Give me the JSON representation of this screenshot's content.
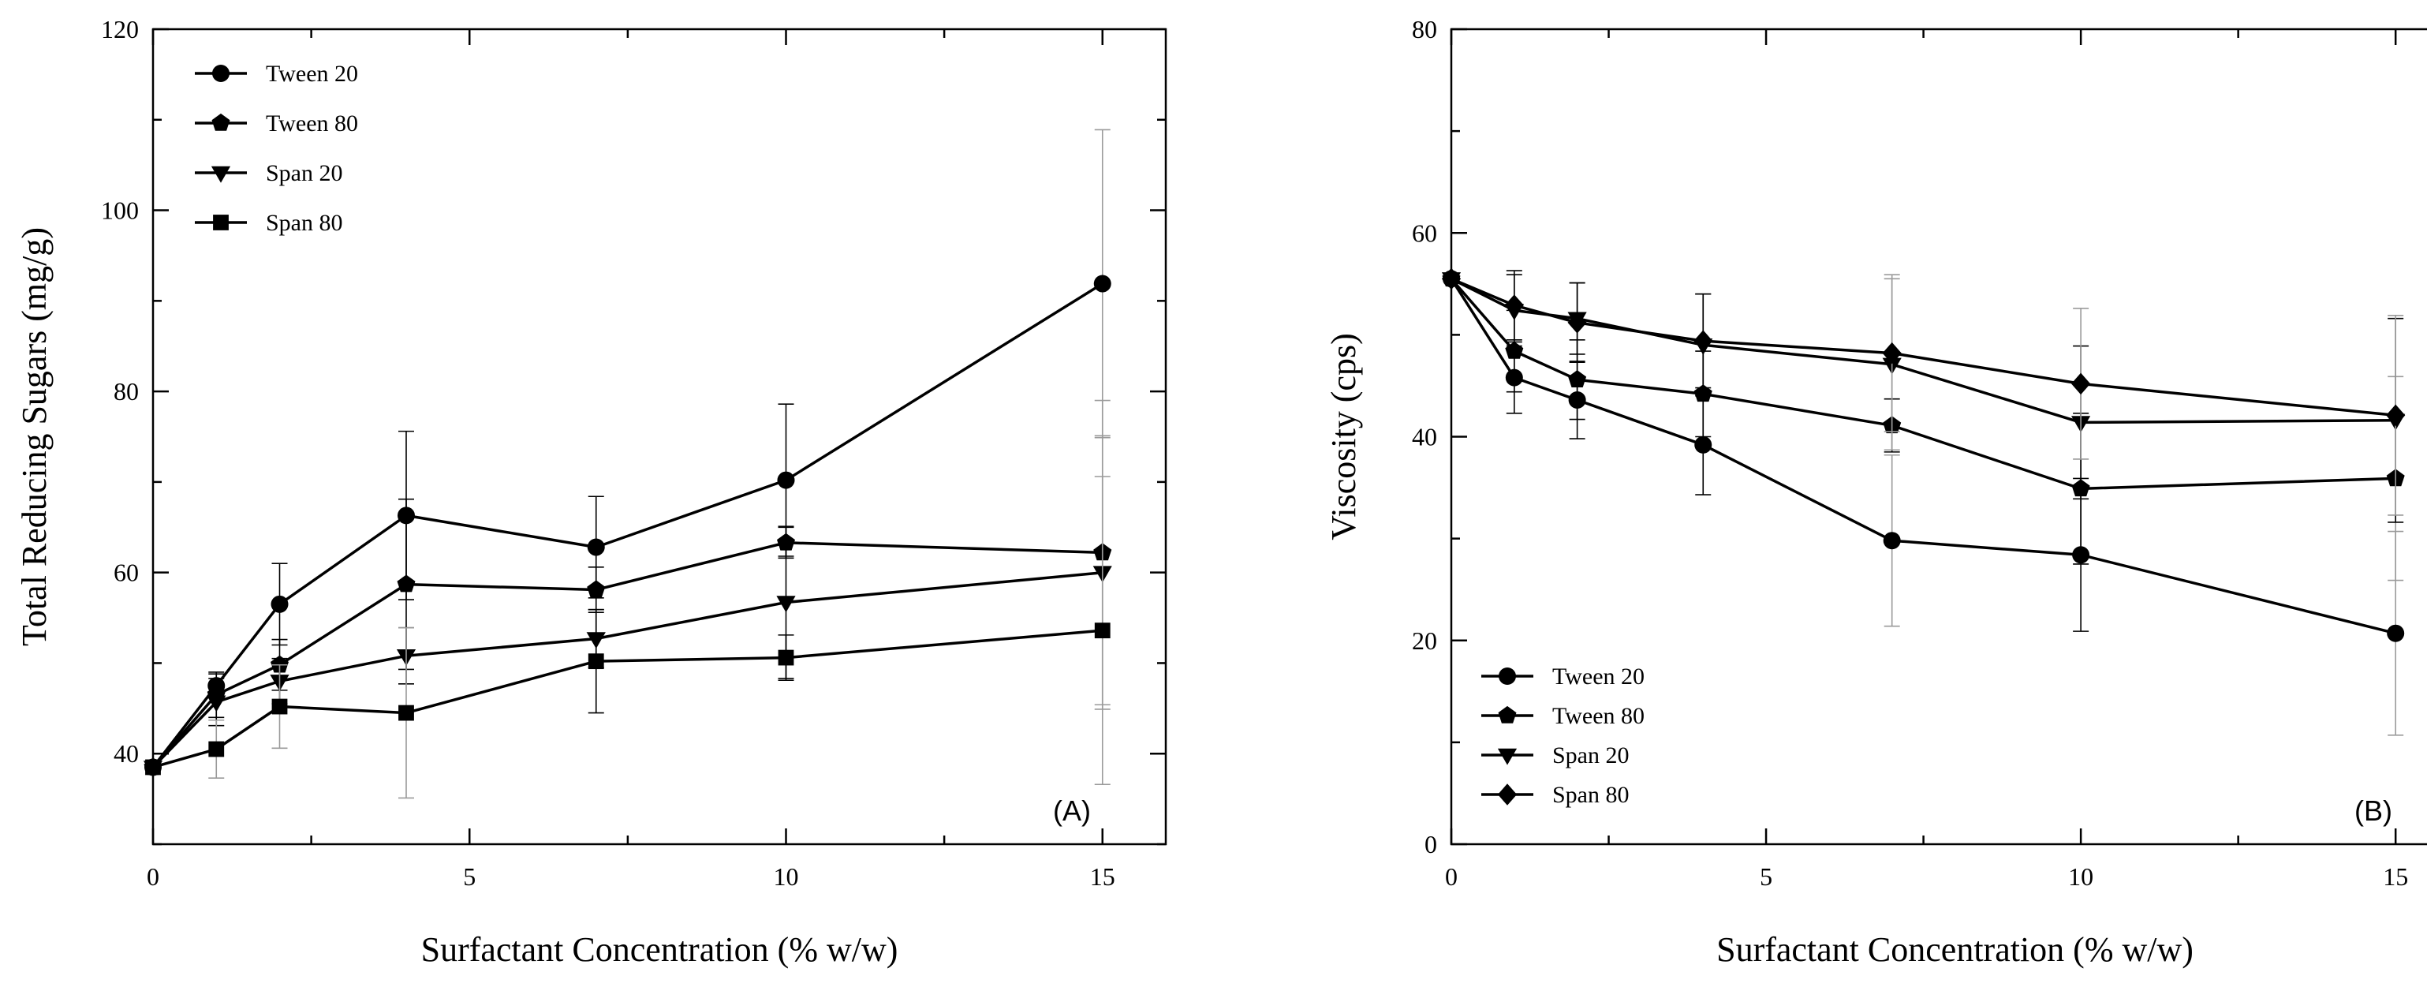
{
  "chart_data": [
    {
      "type": "line",
      "panel_label": "(A)",
      "title": "",
      "xlabel": "Surfactant Concentration (% w/w)",
      "ylabel": "Total Reducing Sugars (mg/g)",
      "xlim": [
        0,
        16
      ],
      "ylim": [
        30,
        120
      ],
      "xticks": [
        0,
        5,
        10,
        15
      ],
      "xtick_labels": [
        "0",
        "5",
        "10",
        "15"
      ],
      "yticks": [
        40,
        60,
        80,
        100,
        120
      ],
      "ytick_labels": [
        "40",
        "60",
        "80",
        "100",
        "120"
      ],
      "grid": false,
      "legend_position": "top-left",
      "x": [
        0,
        1,
        2,
        4,
        7,
        10,
        15
      ],
      "series": [
        {
          "name": "Tween 20",
          "marker": "circle",
          "values": [
            38.5,
            47.5,
            56.5,
            66.3,
            62.8,
            70.2,
            91.9
          ],
          "errors": [
            0.5,
            1.3,
            4.5,
            9.3,
            5.6,
            8.4,
            17.0
          ]
        },
        {
          "name": "Tween 80",
          "marker": "pentagon",
          "values": [
            38.5,
            46.5,
            49.8,
            58.7,
            58.1,
            63.3,
            62.2
          ],
          "errors": [
            0.5,
            2.5,
            2.8,
            9.4,
            2.5,
            1.7,
            16.8
          ]
        },
        {
          "name": "Span 20",
          "marker": "triangle",
          "values": [
            38.5,
            45.7,
            48.0,
            50.8,
            52.7,
            56.7,
            60.0
          ],
          "errors": [
            0.5,
            2.6,
            2.5,
            3.1,
            3.2,
            8.4,
            15.1
          ]
        },
        {
          "name": "Span 80",
          "marker": "square",
          "values": [
            38.5,
            40.5,
            45.2,
            44.5,
            50.2,
            50.6,
            53.6
          ],
          "errors": [
            0.5,
            3.2,
            4.6,
            9.4,
            5.7,
            2.5,
            17.0
          ]
        }
      ]
    },
    {
      "type": "line",
      "panel_label": "(B)",
      "title": "",
      "xlabel": "Surfactant Concentration (% w/w)",
      "ylabel": "Viscosity (cps)",
      "xlim": [
        0,
        16
      ],
      "ylim": [
        0,
        80
      ],
      "xticks": [
        0,
        5,
        10,
        15
      ],
      "xtick_labels": [
        "0",
        "5",
        "10",
        "15"
      ],
      "yticks": [
        0,
        20,
        40,
        60,
        80
      ],
      "ytick_labels": [
        "0",
        "20",
        "40",
        "60",
        "80"
      ],
      "grid": false,
      "legend_position": "bottom-left",
      "x": [
        0,
        1,
        2,
        4,
        7,
        10,
        15
      ],
      "series": [
        {
          "name": "Tween 20",
          "marker": "circle",
          "values": [
            55.5,
            45.8,
            43.6,
            39.2,
            29.8,
            28.4,
            20.7
          ],
          "errors": [
            0.5,
            3.5,
            3.8,
            4.9,
            8.4,
            7.5,
            10.0
          ]
        },
        {
          "name": "Tween 80",
          "marker": "pentagon",
          "values": [
            55.5,
            48.4,
            45.6,
            44.2,
            41.1,
            34.9,
            35.9
          ],
          "errors": [
            0.5,
            4.0,
            3.9,
            4.2,
            2.6,
            7.4,
            10.0
          ]
        },
        {
          "name": "Span 20",
          "marker": "triangle",
          "values": [
            55.5,
            52.4,
            51.6,
            49.0,
            47.1,
            41.4,
            41.6
          ],
          "errors": [
            0.5,
            3.5,
            3.5,
            5.0,
            8.4,
            7.5,
            10.0
          ]
        },
        {
          "name": "Span 80",
          "marker": "diamond",
          "values": [
            55.5,
            52.9,
            51.2,
            49.4,
            48.2,
            45.2,
            42.1
          ],
          "errors": [
            0.5,
            3.4,
            3.9,
            4.6,
            7.7,
            7.4,
            9.8
          ]
        }
      ]
    }
  ]
}
